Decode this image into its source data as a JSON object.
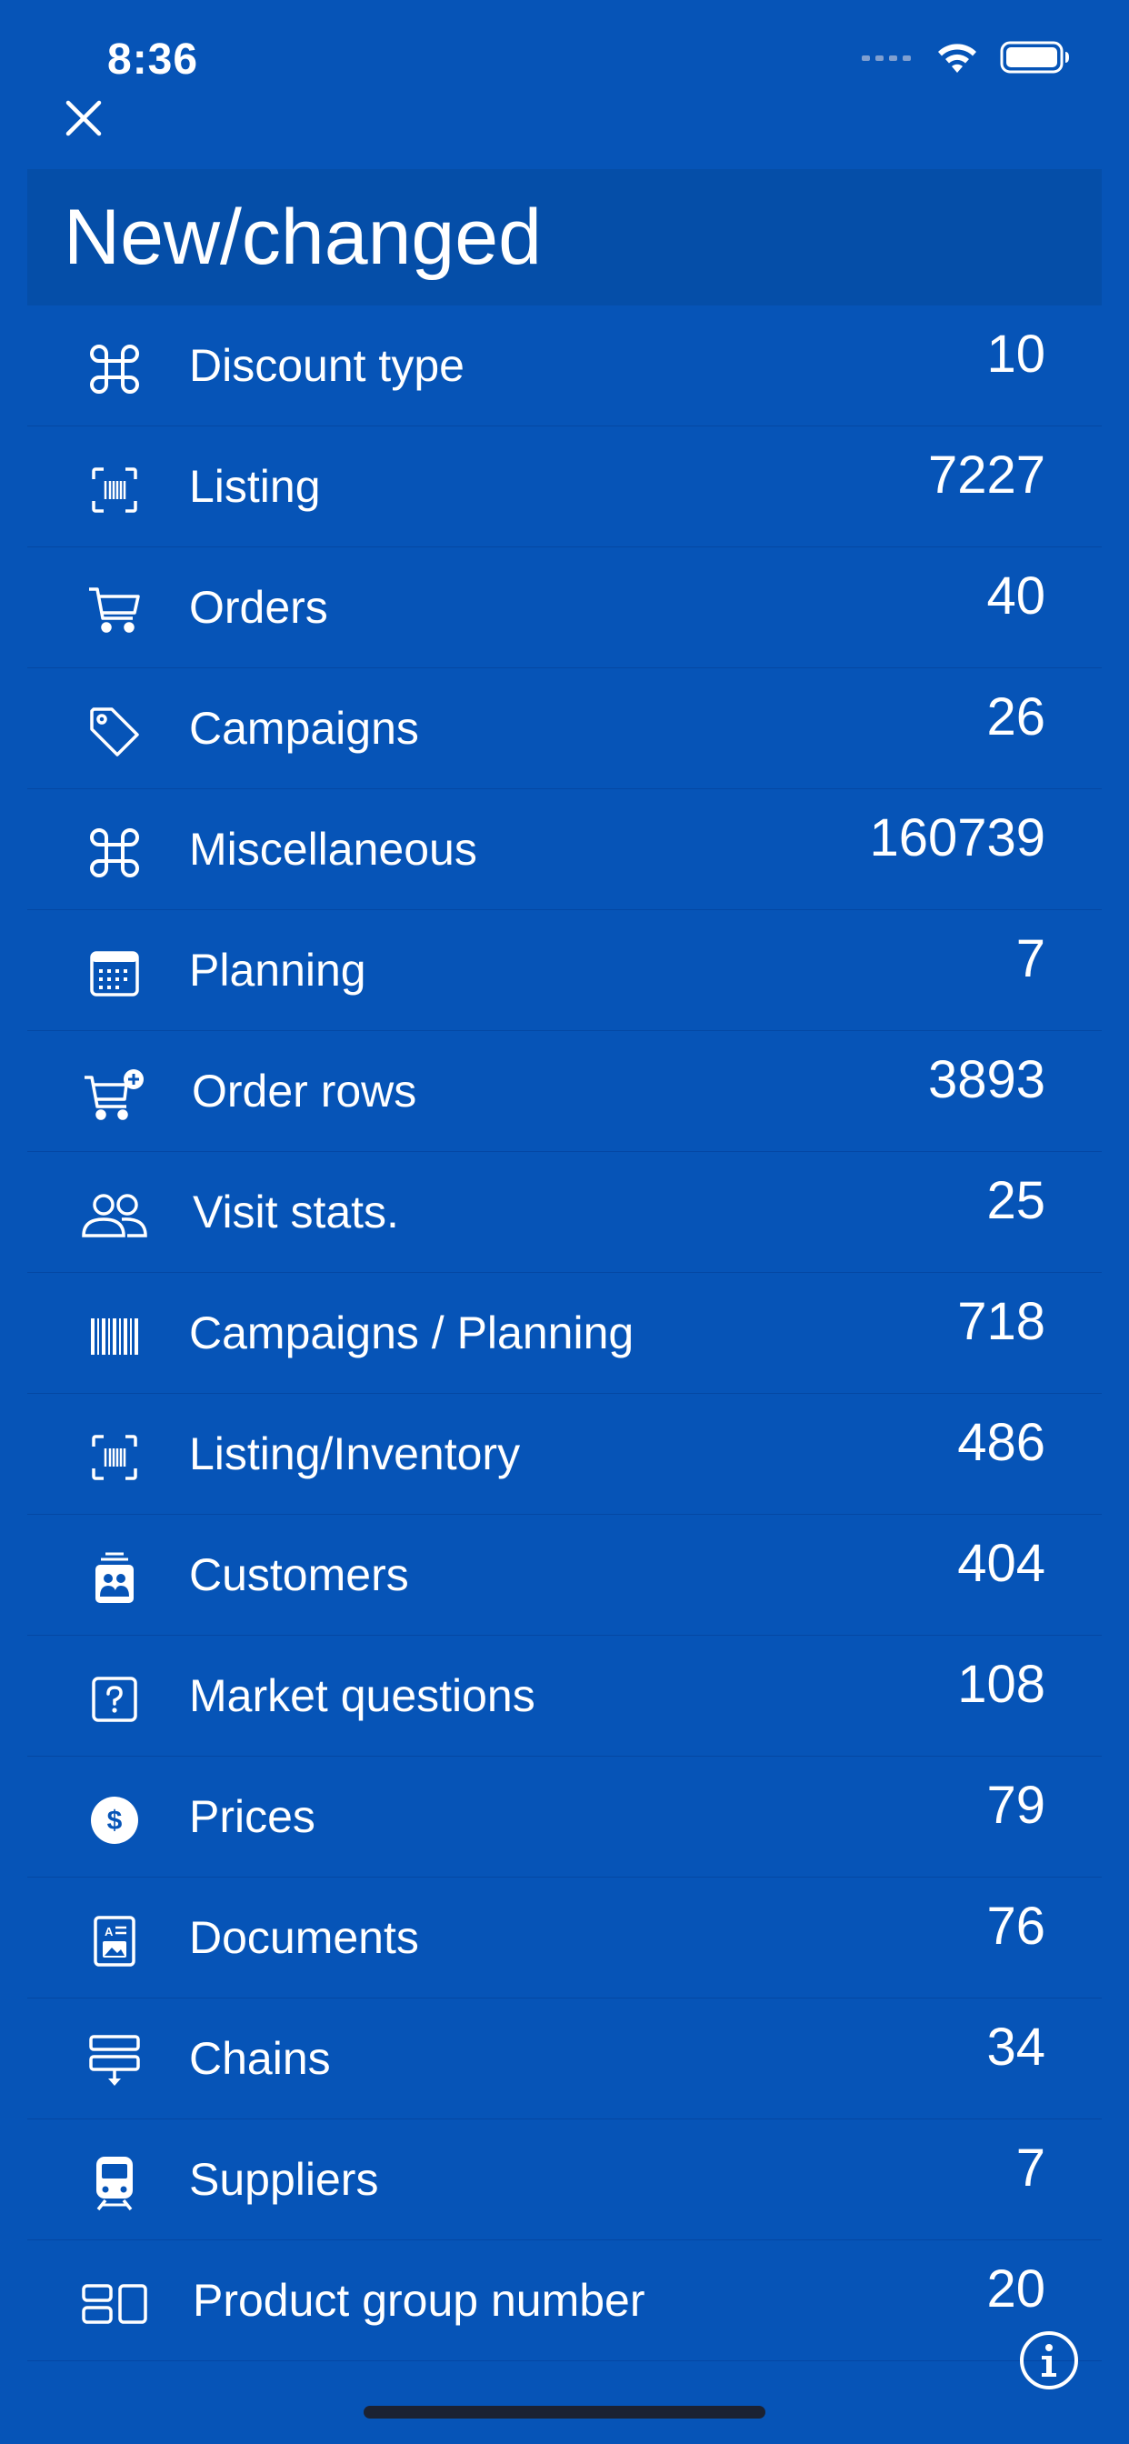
{
  "status_bar": {
    "time": "8:36"
  },
  "header": {
    "title": "New/changed"
  },
  "icons": {
    "close": "close-icon",
    "info": "info-icon"
  },
  "colors": {
    "background": "#0654b7",
    "header_band": "#054ea8",
    "text": "#ffffff"
  },
  "items": [
    {
      "icon": "command-icon",
      "label": "Discount type",
      "value": "10"
    },
    {
      "icon": "barcode-scan-icon",
      "label": "Listing",
      "value": "7227"
    },
    {
      "icon": "cart-icon",
      "label": "Orders",
      "value": "40"
    },
    {
      "icon": "tag-icon",
      "label": "Campaigns",
      "value": "26"
    },
    {
      "icon": "command-icon",
      "label": "Miscellaneous",
      "value": "160739"
    },
    {
      "icon": "calendar-icon",
      "label": "Planning",
      "value": "7"
    },
    {
      "icon": "cart-plus-icon",
      "label": "Order rows",
      "value": "3893"
    },
    {
      "icon": "people-icon",
      "label": "Visit stats.",
      "value": "25"
    },
    {
      "icon": "barcode-icon",
      "label": "Campaigns / Planning",
      "value": "718"
    },
    {
      "icon": "barcode-scan-icon",
      "label": "Listing/Inventory",
      "value": "486"
    },
    {
      "icon": "contact-card-icon",
      "label": "Customers",
      "value": "404"
    },
    {
      "icon": "question-square-icon",
      "label": "Market questions",
      "value": "108"
    },
    {
      "icon": "dollar-circle-icon",
      "label": "Prices",
      "value": "79"
    },
    {
      "icon": "document-icon",
      "label": "Documents",
      "value": "76"
    },
    {
      "icon": "chain-download-icon",
      "label": "Chains",
      "value": "34"
    },
    {
      "icon": "tram-icon",
      "label": "Suppliers",
      "value": "7"
    },
    {
      "icon": "product-group-icon",
      "label": "Product group number",
      "value": "20"
    }
  ]
}
